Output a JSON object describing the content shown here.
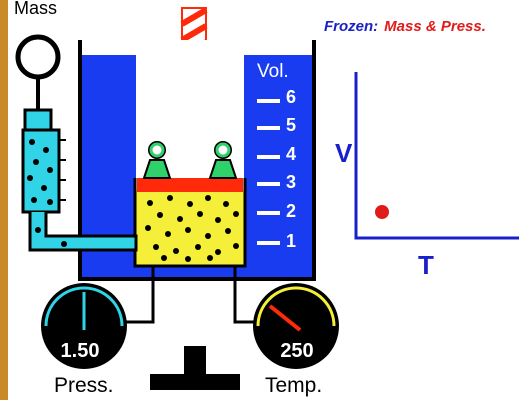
{
  "labels": {
    "mass": "Mass",
    "pressure": "Press.",
    "temperature": "Temp.",
    "volume_title": "Vol.",
    "frozen_prefix": "Frozen:",
    "frozen_values": "Mass  & Press."
  },
  "gauges": {
    "pressure_value": "1.50",
    "temperature_value": "250"
  },
  "volume_scale": [
    "6",
    "5",
    "4",
    "3",
    "2",
    "1"
  ],
  "graph": {
    "y_label": "V",
    "x_label": "T",
    "point_color": "#e11a1a"
  },
  "colors": {
    "bath": "#1a3cf0",
    "gas": "#f5ef3a",
    "piston": "#ff2a0a",
    "weights": "#2fd26a",
    "pressure_tube": "#31d3e6",
    "axis": "#1a20c8",
    "left_border": "#c98a2a"
  },
  "icons": [
    "gear-icon",
    "burner-icon",
    "crosshatch-rod-icon"
  ]
}
